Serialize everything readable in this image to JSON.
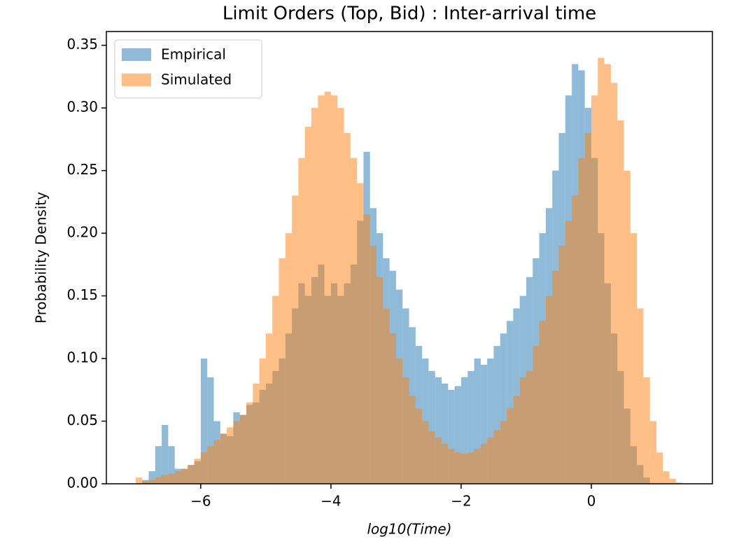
{
  "chart_data": {
    "type": "histogram",
    "title": "Limit Orders (Top, Bid) : Inter-arrival time",
    "x_label": "log10(Time)",
    "y_label": "Probability Density",
    "bins": [
      -7,
      -6.9,
      -6.8,
      -6.7,
      -6.6,
      -6.5,
      -6.4,
      -6.3,
      -6.2,
      -6.1,
      -6,
      -5.9,
      -5.8,
      -5.7,
      -5.6,
      -5.5,
      -5.4,
      -5.3,
      -5.2,
      -5.1,
      -5,
      -4.9,
      -4.8,
      -4.7,
      -4.6,
      -4.5,
      -4.4,
      -4.3,
      -4.2,
      -4.1,
      -4,
      -3.9,
      -3.8,
      -3.7,
      -3.6,
      -3.5,
      -3.4,
      -3.3,
      -3.2,
      -3.1,
      -3,
      -2.9,
      -2.8,
      -2.7,
      -2.6,
      -2.5,
      -2.4,
      -2.3,
      -2.2,
      -2.1,
      -2,
      -1.9,
      -1.8,
      -1.7,
      -1.6,
      -1.5,
      -1.4,
      -1.3,
      -1.2,
      -1.1,
      -1,
      -0.9,
      -0.8,
      -0.7,
      -0.6,
      -0.5,
      -0.4,
      -0.3,
      -0.2,
      -0.1,
      0,
      0.1,
      0.2,
      0.3,
      0.4,
      0.5,
      0.6,
      0.7,
      0.8,
      0.9,
      1,
      1.1,
      1.2,
      1.3,
      1.4
    ],
    "series": [
      {
        "name": "Empirical",
        "color": "#1f77b4",
        "values": [
          0,
          0.003,
          0.01,
          0.03,
          0.047,
          0.03,
          0.012,
          0.012,
          0.015,
          0.018,
          0.1,
          0.085,
          0.05,
          0.04,
          0.038,
          0.057,
          0.055,
          0.063,
          0.065,
          0.075,
          0.08,
          0.09,
          0.1,
          0.12,
          0.14,
          0.16,
          0.15,
          0.165,
          0.175,
          0.15,
          0.16,
          0.15,
          0.16,
          0.175,
          0.21,
          0.265,
          0.22,
          0.2,
          0.18,
          0.17,
          0.155,
          0.14,
          0.125,
          0.11,
          0.1,
          0.09,
          0.085,
          0.08,
          0.075,
          0.078,
          0.085,
          0.09,
          0.1,
          0.095,
          0.1,
          0.11,
          0.12,
          0.13,
          0.14,
          0.15,
          0.165,
          0.18,
          0.2,
          0.22,
          0.25,
          0.28,
          0.31,
          0.335,
          0.33,
          0.3,
          0.26,
          0.2,
          0.16,
          0.12,
          0.09,
          0.06,
          0.03,
          0.015,
          0.005,
          0,
          0,
          0,
          0,
          0
        ]
      },
      {
        "name": "Simulated",
        "color": "#ff7f0e",
        "values": [
          0.005,
          0.002,
          0.003,
          0.005,
          0.007,
          0.008,
          0.01,
          0.012,
          0.015,
          0.02,
          0.025,
          0.03,
          0.035,
          0.04,
          0.045,
          0.05,
          0.055,
          0.065,
          0.08,
          0.1,
          0.12,
          0.15,
          0.18,
          0.2,
          0.23,
          0.26,
          0.285,
          0.3,
          0.31,
          0.313,
          0.31,
          0.3,
          0.28,
          0.26,
          0.24,
          0.215,
          0.19,
          0.165,
          0.14,
          0.12,
          0.1,
          0.085,
          0.07,
          0.06,
          0.05,
          0.042,
          0.037,
          0.032,
          0.028,
          0.025,
          0.024,
          0.025,
          0.028,
          0.032,
          0.037,
          0.043,
          0.05,
          0.06,
          0.07,
          0.085,
          0.09,
          0.11,
          0.13,
          0.15,
          0.17,
          0.19,
          0.21,
          0.23,
          0.26,
          0.28,
          0.31,
          0.34,
          0.335,
          0.32,
          0.29,
          0.25,
          0.2,
          0.14,
          0.085,
          0.05,
          0.025,
          0.01,
          0.004,
          0.001
        ]
      }
    ],
    "bar_opacity": 0.5,
    "xlim": [
      -7.45,
      1.86
    ],
    "ylim": [
      0,
      0.361
    ],
    "xticks": [
      {
        "value": -6,
        "label": "−6"
      },
      {
        "value": -4,
        "label": "−4"
      },
      {
        "value": -2,
        "label": "−2"
      },
      0
    ],
    "yticks": [
      {
        "value": 0,
        "label": "0.00"
      },
      0.05,
      {
        "value": 0.1,
        "label": "0.10"
      },
      0.15,
      {
        "value": 0.2,
        "label": "0.20"
      },
      0.25,
      {
        "value": 0.3,
        "label": "0.30"
      },
      0.35
    ],
    "legend": "upper left",
    "grid": false
  }
}
